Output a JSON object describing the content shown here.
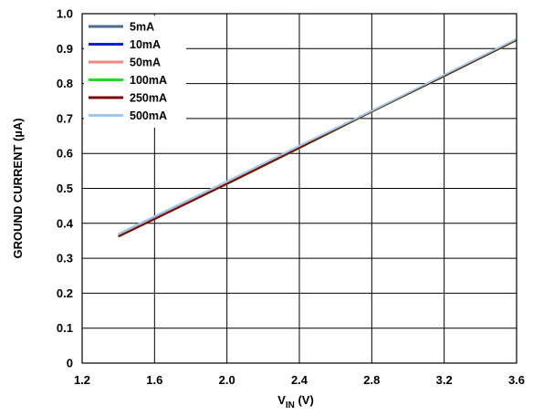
{
  "chart_data": {
    "type": "line",
    "title": "",
    "xlabel_main": "V",
    "xlabel_sub": "IN",
    "xlabel_unit": " (V)",
    "ylabel": "GROUND CURRENT (µA)",
    "xlim": [
      1.2,
      3.6
    ],
    "ylim": [
      0,
      1.0
    ],
    "xticks": [
      "1.2",
      "1.6",
      "2.0",
      "2.4",
      "2.8",
      "3.2",
      "3.6"
    ],
    "yticks": [
      "0",
      "0.1",
      "0.2",
      "0.3",
      "0.4",
      "0.5",
      "0.6",
      "0.7",
      "0.8",
      "0.9",
      "1.0"
    ],
    "grid": true,
    "legend_position": "top-left",
    "series": [
      {
        "name": "5mA",
        "color": "#4a6a90",
        "x": [
          1.4,
          1.6,
          2.0,
          2.4,
          2.8,
          3.2,
          3.6
        ],
        "y": [
          0.367,
          0.416,
          0.517,
          0.62,
          0.722,
          0.822,
          0.925
        ]
      },
      {
        "name": "10mA",
        "color": "#0a22d4",
        "x": [
          1.4,
          1.6,
          2.0,
          2.4,
          2.8,
          3.2,
          3.6
        ],
        "y": [
          0.366,
          0.415,
          0.516,
          0.619,
          0.721,
          0.822,
          0.925
        ]
      },
      {
        "name": "50mA",
        "color": "#f08a80",
        "x": [
          1.4,
          1.6,
          2.0,
          2.4,
          2.8,
          3.2,
          3.6
        ],
        "y": [
          0.365,
          0.414,
          0.515,
          0.618,
          0.72,
          0.821,
          0.924
        ]
      },
      {
        "name": "100mA",
        "color": "#22dd22",
        "x": [
          1.4,
          1.6,
          2.0,
          2.4,
          2.8,
          3.2,
          3.6
        ],
        "y": [
          0.363,
          0.412,
          0.512,
          0.615,
          0.719,
          0.821,
          0.924
        ]
      },
      {
        "name": "250mA",
        "color": "#7a0a0a",
        "x": [
          1.4,
          1.6,
          2.0,
          2.4,
          2.8,
          3.2,
          3.6
        ],
        "y": [
          0.362,
          0.412,
          0.513,
          0.616,
          0.72,
          0.822,
          0.925
        ]
      },
      {
        "name": "500mA",
        "color": "#9cc8f0",
        "x": [
          1.4,
          1.6,
          2.0,
          2.4,
          2.8,
          3.2,
          3.6
        ],
        "y": [
          0.37,
          0.42,
          0.52,
          0.622,
          0.722,
          0.825,
          0.928
        ]
      }
    ]
  }
}
